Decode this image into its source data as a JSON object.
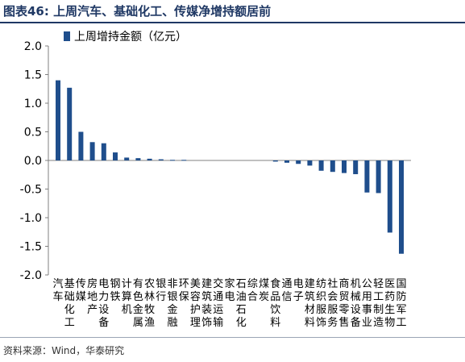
{
  "header": {
    "title": "图表46:  上周汽车、基础化工、传媒净增持额居前"
  },
  "footer": {
    "source": "资料来源：Wind，华泰研究"
  },
  "colors": {
    "bar": "#1f4e8c",
    "title": "#1f3864",
    "axis": "#808080"
  },
  "chart_data": {
    "type": "bar",
    "title": "图表46:  上周汽车、基础化工、传媒净增持额居前",
    "xlabel": "",
    "ylabel": "",
    "ylim": [
      -2.0,
      2.0
    ],
    "yticks": [
      "2.0",
      "1.5",
      "1.0",
      "0.5",
      "0.0",
      "-0.5",
      "-1.0",
      "-1.5",
      "-2.0"
    ],
    "grid": false,
    "legend_position": "top-left",
    "series": [
      {
        "name": "上周增持金额（亿元）",
        "values": [
          1.4,
          1.27,
          0.5,
          0.32,
          0.3,
          0.14,
          0.05,
          0.04,
          0.03,
          0.02,
          0.01,
          0.01,
          0.0,
          0.0,
          0.0,
          0.0,
          0.0,
          0.0,
          0.0,
          -0.02,
          -0.04,
          -0.06,
          -0.09,
          -0.18,
          -0.2,
          -0.22,
          -0.24,
          -0.56,
          -0.57,
          -1.26,
          -1.63
        ]
      }
    ],
    "categories": [
      "汽车",
      "基础化工",
      "传媒",
      "房地产",
      "电力设备",
      "钢铁",
      "计算机",
      "有色金属",
      "农林牧渔",
      "银行",
      "非银金融",
      "环保",
      "美容护理",
      "建筑装饰",
      "交通运输",
      "家电",
      "石油石化",
      "综合",
      "煤炭",
      "食品饮料",
      "通信",
      "电子",
      "建筑材料",
      "纺织服饰",
      "社会服务",
      "商贸零售",
      "机械设备",
      "公用事业",
      "轻工制造",
      "医药生物",
      "国防军工"
    ]
  }
}
